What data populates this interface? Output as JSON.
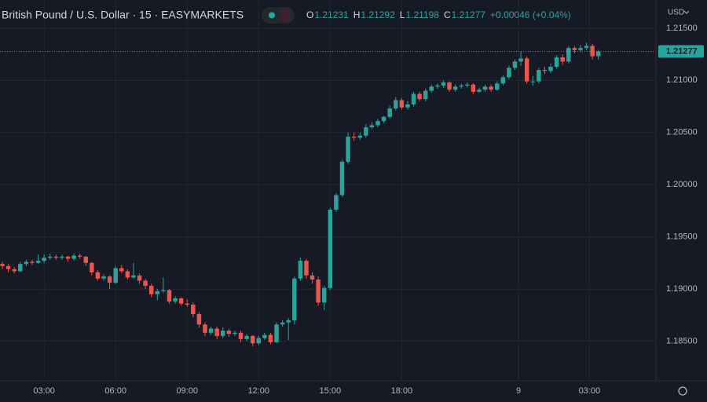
{
  "chart_data": {
    "type": "candlestick",
    "title": "British Pound / U.S. Dollar · 15 · EASYMARKETS",
    "ohlc_labels": [
      "O",
      "H",
      "L",
      "C"
    ],
    "change": "+0.00046 (+0.04%)",
    "currency": "USD",
    "up_color": "#26a69a",
    "down_color": "#ef5350",
    "grid": true,
    "last_price_line": true,
    "xlim": [
      -0.4,
      109
    ],
    "xticks": [
      {
        "value": 7,
        "label": "03:00"
      },
      {
        "value": 19,
        "label": "06:00"
      },
      {
        "value": 31,
        "label": "09:00"
      },
      {
        "value": 43,
        "label": "12:00"
      },
      {
        "value": 55,
        "label": "15:00"
      },
      {
        "value": 67,
        "label": "18:00"
      },
      {
        "value": 86.6,
        "label": "9"
      },
      {
        "value": 98.5,
        "label": "03:00"
      }
    ],
    "ylim": [
      1.1812,
      1.2177
    ],
    "yticks": [
      {
        "value": 1.185,
        "label": "1.18500"
      },
      {
        "value": 1.19,
        "label": "1.19000"
      },
      {
        "value": 1.195,
        "label": "1.19500"
      },
      {
        "value": 1.2,
        "label": "1.20000"
      },
      {
        "value": 1.205,
        "label": "1.20500"
      },
      {
        "value": 1.21,
        "label": "1.21000"
      },
      {
        "value": 1.215,
        "label": "1.21500"
      }
    ],
    "candles": [
      [
        1.1924,
        1.1926,
        1.1919,
        1.1922
      ],
      [
        1.1922,
        1.1924,
        1.1916,
        1.1919
      ],
      [
        1.1919,
        1.1921,
        1.1915,
        1.1917
      ],
      [
        1.1917,
        1.1926,
        1.1916,
        1.1924
      ],
      [
        1.1924,
        1.1928,
        1.1922,
        1.1926
      ],
      [
        1.1926,
        1.1928,
        1.1923,
        1.1925
      ],
      [
        1.1925,
        1.1933,
        1.1924,
        1.1927
      ],
      [
        1.1927,
        1.1933,
        1.1925,
        1.193
      ],
      [
        1.193,
        1.1934,
        1.1928,
        1.1931
      ],
      [
        1.1931,
        1.1933,
        1.1928,
        1.193
      ],
      [
        1.193,
        1.1933,
        1.1928,
        1.1931
      ],
      [
        1.1931,
        1.1932,
        1.1926,
        1.1929
      ],
      [
        1.1929,
        1.1934,
        1.1927,
        1.1932
      ],
      [
        1.1932,
        1.1934,
        1.1929,
        1.1931
      ],
      [
        1.1931,
        1.1932,
        1.1922,
        1.1925
      ],
      [
        1.1925,
        1.1926,
        1.1913,
        1.1916
      ],
      [
        1.1916,
        1.1918,
        1.1908,
        1.191
      ],
      [
        1.191,
        1.1914,
        1.1908,
        1.1912
      ],
      [
        1.1912,
        1.1913,
        1.19,
        1.1906
      ],
      [
        1.1906,
        1.1922,
        1.1905,
        1.192
      ],
      [
        1.192,
        1.1923,
        1.1915,
        1.1917
      ],
      [
        1.1917,
        1.1919,
        1.1909,
        1.1911
      ],
      [
        1.1911,
        1.1925,
        1.191,
        1.1913
      ],
      [
        1.1913,
        1.1915,
        1.1905,
        1.1908
      ],
      [
        1.1908,
        1.191,
        1.19,
        1.1903
      ],
      [
        1.1903,
        1.1905,
        1.1892,
        1.1895
      ],
      [
        1.1895,
        1.19,
        1.1889,
        1.1898
      ],
      [
        1.1898,
        1.1911,
        1.1896,
        1.1899
      ],
      [
        1.1899,
        1.19,
        1.1886,
        1.1888
      ],
      [
        1.1888,
        1.1893,
        1.1886,
        1.1891
      ],
      [
        1.1891,
        1.1892,
        1.1884,
        1.1886
      ],
      [
        1.1886,
        1.189,
        1.1883,
        1.1885
      ],
      [
        1.1885,
        1.1887,
        1.1873,
        1.1876
      ],
      [
        1.1876,
        1.1878,
        1.1863,
        1.1866
      ],
      [
        1.1866,
        1.1868,
        1.1855,
        1.1858
      ],
      [
        1.1858,
        1.1864,
        1.1856,
        1.1862
      ],
      [
        1.1862,
        1.1864,
        1.1852,
        1.1855
      ],
      [
        1.1855,
        1.1863,
        1.1853,
        1.186
      ],
      [
        1.186,
        1.1862,
        1.1854,
        1.1857
      ],
      [
        1.1857,
        1.186,
        1.1855,
        1.1858
      ],
      [
        1.1858,
        1.186,
        1.1849,
        1.1852
      ],
      [
        1.1852,
        1.1857,
        1.185,
        1.1855
      ],
      [
        1.1855,
        1.1856,
        1.1845,
        1.1848
      ],
      [
        1.1848,
        1.1855,
        1.1846,
        1.1853
      ],
      [
        1.1853,
        1.1858,
        1.1851,
        1.1856
      ],
      [
        1.1856,
        1.1858,
        1.1847,
        1.1849
      ],
      [
        1.1849,
        1.1868,
        1.1848,
        1.1866
      ],
      [
        1.1866,
        1.187,
        1.1864,
        1.1868
      ],
      [
        1.1868,
        1.1872,
        1.1851,
        1.187
      ],
      [
        1.187,
        1.1912,
        1.1866,
        1.191
      ],
      [
        1.191,
        1.193,
        1.1908,
        1.1927
      ],
      [
        1.1927,
        1.1929,
        1.191,
        1.1913
      ],
      [
        1.1913,
        1.1916,
        1.1905,
        1.1909
      ],
      [
        1.1909,
        1.1912,
        1.1884,
        1.1887
      ],
      [
        1.1887,
        1.1903,
        1.188,
        1.1901
      ],
      [
        1.1901,
        1.1978,
        1.1899,
        1.1976
      ],
      [
        1.1976,
        1.1992,
        1.1974,
        1.199
      ],
      [
        1.199,
        1.2024,
        1.1988,
        1.2022
      ],
      [
        1.2022,
        1.205,
        1.202,
        1.2046
      ],
      [
        1.2046,
        1.205,
        1.2042,
        1.2045
      ],
      [
        1.2045,
        1.205,
        1.2043,
        1.2047
      ],
      [
        1.2047,
        1.2058,
        1.2045,
        1.2055
      ],
      [
        1.2055,
        1.206,
        1.2053,
        1.2057
      ],
      [
        1.2057,
        1.2063,
        1.2055,
        1.2061
      ],
      [
        1.2061,
        1.2066,
        1.2059,
        1.2065
      ],
      [
        1.2065,
        1.2076,
        1.2063,
        1.2073
      ],
      [
        1.2073,
        1.2084,
        1.2071,
        1.2081
      ],
      [
        1.2081,
        1.2083,
        1.2072,
        1.2074
      ],
      [
        1.2074,
        1.208,
        1.2072,
        1.2077
      ],
      [
        1.2077,
        1.2089,
        1.2075,
        1.2087
      ],
      [
        1.2087,
        1.2089,
        1.208,
        1.2082
      ],
      [
        1.2082,
        1.2092,
        1.208,
        1.209
      ],
      [
        1.209,
        1.2096,
        1.2088,
        1.2094
      ],
      [
        1.2094,
        1.2097,
        1.2092,
        1.2095
      ],
      [
        1.2095,
        1.21,
        1.2093,
        1.2098
      ],
      [
        1.2098,
        1.2099,
        1.2089,
        1.2091
      ],
      [
        1.2091,
        1.2096,
        1.2089,
        1.2094
      ],
      [
        1.2094,
        1.2097,
        1.2092,
        1.2095
      ],
      [
        1.2095,
        1.2098,
        1.2093,
        1.2096
      ],
      [
        1.2096,
        1.2097,
        1.2087,
        1.2089
      ],
      [
        1.2089,
        1.2093,
        1.2088,
        1.2091
      ],
      [
        1.2091,
        1.2096,
        1.2089,
        1.2094
      ],
      [
        1.2094,
        1.2096,
        1.2089,
        1.2091
      ],
      [
        1.2091,
        1.2099,
        1.209,
        1.2097
      ],
      [
        1.2097,
        1.2105,
        1.2095,
        1.2103
      ],
      [
        1.2103,
        1.2114,
        1.2101,
        1.2112
      ],
      [
        1.2112,
        1.212,
        1.211,
        1.2118
      ],
      [
        1.2118,
        1.2128,
        1.2114,
        1.2121
      ],
      [
        1.2121,
        1.2123,
        1.2097,
        1.2099
      ],
      [
        1.2099,
        1.2104,
        1.2095,
        1.2099
      ],
      [
        1.2099,
        1.2112,
        1.2097,
        1.211
      ],
      [
        1.211,
        1.2113,
        1.2106,
        1.2109
      ],
      [
        1.2109,
        1.2116,
        1.2107,
        1.2113
      ],
      [
        1.2113,
        1.2124,
        1.2111,
        1.2122
      ],
      [
        1.2122,
        1.2125,
        1.2115,
        1.2118
      ],
      [
        1.2118,
        1.2133,
        1.2116,
        1.2131
      ],
      [
        1.2131,
        1.2133,
        1.2126,
        1.2129
      ],
      [
        1.2129,
        1.2134,
        1.2127,
        1.2131
      ],
      [
        1.2131,
        1.2136,
        1.2129,
        1.2133
      ],
      [
        1.2133,
        1.2135,
        1.212,
        1.2123
      ],
      [
        1.21231,
        1.21292,
        1.21198,
        1.21277
      ]
    ]
  }
}
